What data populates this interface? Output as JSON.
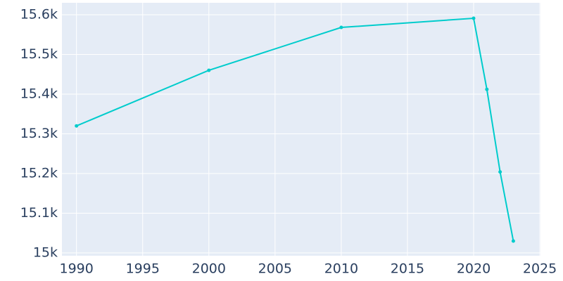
{
  "chart_data": {
    "type": "line",
    "x": [
      1990,
      2000,
      2010,
      2020,
      2021,
      2022,
      2023
    ],
    "values": [
      15320,
      15460,
      15568,
      15591,
      15412,
      15204,
      15030
    ],
    "color": "#00cccc",
    "xlim": [
      1988.9,
      2025.05
    ],
    "ylim": [
      14993,
      15630
    ],
    "xticks": [
      1990,
      1995,
      2000,
      2005,
      2010,
      2015,
      2020,
      2025
    ],
    "yticks": [
      {
        "value": 15000,
        "label": "15k"
      },
      {
        "value": 15100,
        "label": "15.1k"
      },
      {
        "value": 15200,
        "label": "15.2k"
      },
      {
        "value": 15300,
        "label": "15.3k"
      },
      {
        "value": 15400,
        "label": "15.4k"
      },
      {
        "value": 15500,
        "label": "15.5k"
      },
      {
        "value": 15600,
        "label": "15.6k"
      }
    ],
    "grid": true
  }
}
